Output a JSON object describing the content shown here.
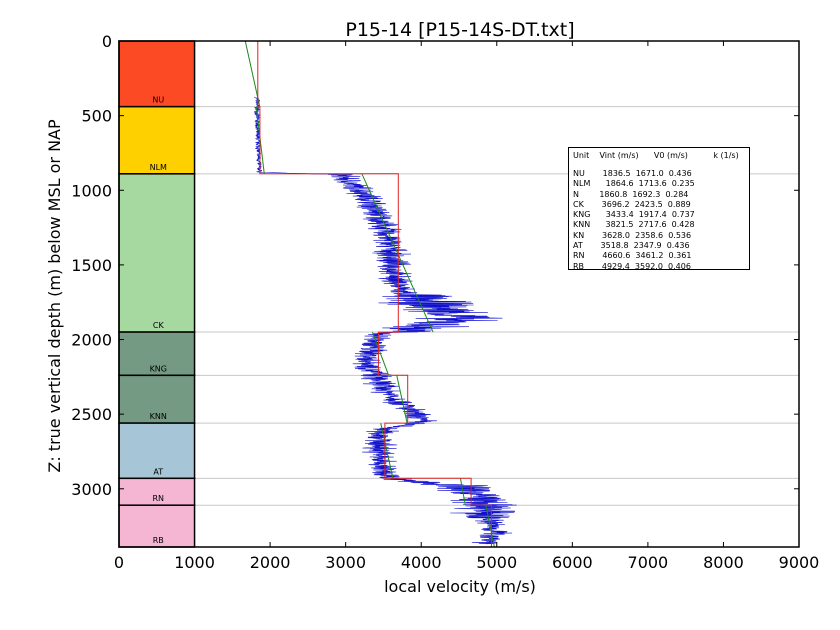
{
  "chart_data": {
    "type": "line",
    "title": "P15-14 [P15-14S-DT.txt]",
    "xlabel": "local velocity (m/s)",
    "ylabel": "Z: true vertical depth (m) below MSL or NAP",
    "xlim": [
      0,
      9000
    ],
    "ylim": [
      3390,
      0
    ],
    "xticks": [
      0,
      1000,
      2000,
      3000,
      4000,
      5000,
      6000,
      7000,
      8000,
      9000
    ],
    "yticks": [
      0,
      500,
      1000,
      1500,
      2000,
      2500,
      3000
    ],
    "grid": "horizontal lines at unit boundaries",
    "units": [
      {
        "name": "NU",
        "top": 0,
        "base": 440,
        "color": "#fc4a24"
      },
      {
        "name": "NLM",
        "top": 440,
        "base": 890,
        "color": "#fed000"
      },
      {
        "name": "CK",
        "top": 890,
        "base": 1950,
        "color": "#a6d9a0"
      },
      {
        "name": "KNG",
        "top": 1950,
        "base": 2240,
        "color": "#749a83"
      },
      {
        "name": "KNN",
        "top": 2240,
        "base": 2560,
        "color": "#749a83"
      },
      {
        "name": "AT",
        "top": 2560,
        "base": 2930,
        "color": "#a6c6d8"
      },
      {
        "name": "RN",
        "top": 2930,
        "base": 3110,
        "color": "#f4b6d2"
      },
      {
        "name": "RB",
        "top": 3110,
        "base": 3390,
        "color": "#f4b6d2"
      }
    ],
    "series": [
      {
        "key": "vint",
        "color": "#dd2222",
        "segments": [
          {
            "z": [
              0,
              440
            ],
            "v": 1836.5
          },
          {
            "z": [
              440,
              890
            ],
            "v": 1864.6
          },
          {
            "z": [
              890,
              1950
            ],
            "v": 3696.2
          },
          {
            "z": [
              1950,
              2240
            ],
            "v": 3433.4
          },
          {
            "z": [
              2240,
              2560
            ],
            "v": 3821.5
          },
          {
            "z": [
              2560,
              2930
            ],
            "v": 3518.8
          },
          {
            "z": [
              2930,
              3110
            ],
            "v": 4660.6
          },
          {
            "z": [
              3110,
              3390
            ],
            "v": 4929.4
          }
        ]
      },
      {
        "key": "v0k",
        "color": "#1a8a1a",
        "segments": [
          {
            "v0": 1671.0,
            "k": 0.436,
            "z": [
              0,
              440
            ]
          },
          {
            "v0": 1713.6,
            "k": 0.235,
            "z": [
              440,
              890
            ]
          },
          {
            "v0": 2423.5,
            "k": 0.889,
            "z": [
              890,
              1950
            ]
          },
          {
            "v0": 1917.4,
            "k": 0.737,
            "z": [
              1950,
              2240
            ]
          },
          {
            "v0": 2717.6,
            "k": 0.428,
            "z": [
              2240,
              2560
            ]
          },
          {
            "v0": 2347.9,
            "k": 0.436,
            "z": [
              2560,
              2930
            ]
          },
          {
            "v0": 3461.2,
            "k": 0.361,
            "z": [
              2930,
              3110
            ]
          },
          {
            "v0": 3592.0,
            "k": 0.406,
            "z": [
              3110,
              3390
            ]
          }
        ]
      },
      {
        "key": "log",
        "color": "#1010cc",
        "trend": [
          [
            380,
            1830
          ],
          [
            500,
            1830
          ],
          [
            600,
            1830
          ],
          [
            700,
            1840
          ],
          [
            880,
            1860
          ],
          [
            895,
            2950
          ],
          [
            950,
            3050
          ],
          [
            1000,
            3200
          ],
          [
            1050,
            3300
          ],
          [
            1100,
            3350
          ],
          [
            1200,
            3450
          ],
          [
            1300,
            3550
          ],
          [
            1400,
            3600
          ],
          [
            1500,
            3620
          ],
          [
            1600,
            3650
          ],
          [
            1680,
            3750
          ],
          [
            1720,
            3900
          ],
          [
            1760,
            4100
          ],
          [
            1800,
            4300
          ],
          [
            1850,
            4500
          ],
          [
            1900,
            4200
          ],
          [
            1940,
            3800
          ],
          [
            1960,
            3450
          ],
          [
            2050,
            3350
          ],
          [
            2150,
            3300
          ],
          [
            2250,
            3400
          ],
          [
            2350,
            3550
          ],
          [
            2450,
            3800
          ],
          [
            2550,
            4000
          ],
          [
            2600,
            3500
          ],
          [
            2700,
            3450
          ],
          [
            2800,
            3450
          ],
          [
            2880,
            3500
          ],
          [
            2930,
            3600
          ],
          [
            2980,
            4500
          ],
          [
            3050,
            4800
          ],
          [
            3110,
            4800
          ],
          [
            3200,
            4900
          ],
          [
            3300,
            5000
          ],
          [
            3370,
            4900
          ]
        ]
      }
    ]
  },
  "table": {
    "header": "Unit    Vint (m/s)      V0 (m/s)          k (1/s)",
    "rows": [
      "NU       1836.5  1671.0  0.436",
      "NLM      1864.6  1713.6  0.235",
      "N        1860.8  1692.3  0.284",
      "CK       3696.2  2423.5  0.889",
      "KNG      3433.4  1917.4  0.737",
      "KNN      3821.5  2717.6  0.428",
      "KN       3628.0  2358.6  0.536",
      "AT       3518.8  2347.9  0.436",
      "RN       4660.6  3461.2  0.361",
      "RB       4929.4  3592.0  0.406"
    ]
  }
}
